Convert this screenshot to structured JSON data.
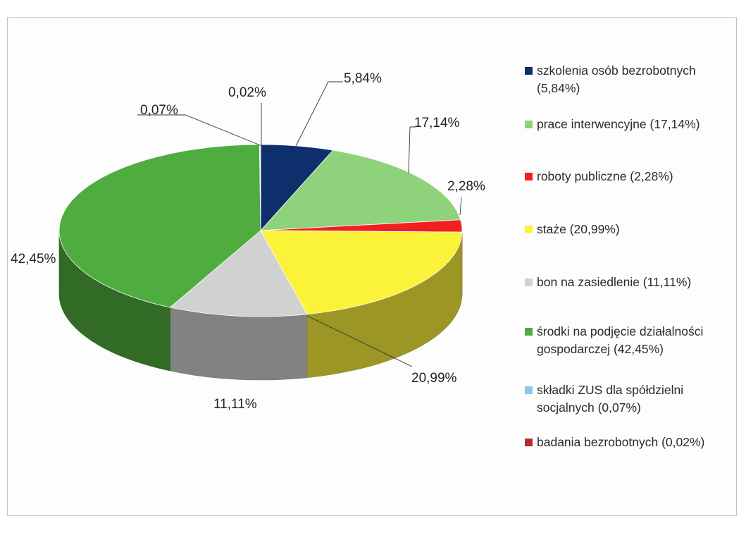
{
  "chart_data": {
    "type": "pie",
    "title": "",
    "categories": [
      "szkolenia osób bezrobotnych (5,84%)",
      "prace interwencyjne (17,14%)",
      "roboty publiczne (2,28%)",
      "staże (20,99%)",
      "bon na zasiedlenie (11,11%)",
      "środki na podjęcie działalności gospodarczej (42,45%)",
      "składki ZUS dla spółdzielni socjalnych (0,07%)",
      "badania bezrobotnych (0,02%)"
    ],
    "values": [
      5.84,
      17.14,
      2.28,
      20.99,
      11.11,
      42.45,
      0.07,
      0.02
    ],
    "value_labels": [
      "5,84%",
      "17,14%",
      "2,28%",
      "20,99%",
      "11,11%",
      "42,45%",
      "0,07%",
      "0,02%"
    ],
    "colors": [
      "#0d2f6b",
      "#8fd27c",
      "#ef1f22",
      "#fbf23a",
      "#d1d1d1",
      "#4fac3e",
      "#92c4e6",
      "#b52a2e"
    ],
    "legend_position": "right",
    "style": "3d-pie"
  },
  "legend": {
    "items": [
      {
        "label": "szkolenia osób bezrobotnych\n(5,84%)",
        "color": "#0d2f6b"
      },
      {
        "label": "prace interwencyjne (17,14%)",
        "color": "#8fd27c"
      },
      {
        "label": "roboty publiczne (2,28%)",
        "color": "#ef1f22"
      },
      {
        "label": "staże (20,99%)",
        "color": "#fbf23a"
      },
      {
        "label": "bon na zasiedlenie (11,11%)",
        "color": "#d1d1d1"
      },
      {
        "label": "środki  na podjęcie działalności\ngospodarczej (42,45%)",
        "color": "#4fac3e"
      },
      {
        "label": "składki ZUS dla spółdzielni\nsocjalnych (0,07%)",
        "color": "#92c4e6"
      },
      {
        "label": "badania bezrobotnych (0,02%)",
        "color": "#b52a2e"
      }
    ]
  }
}
